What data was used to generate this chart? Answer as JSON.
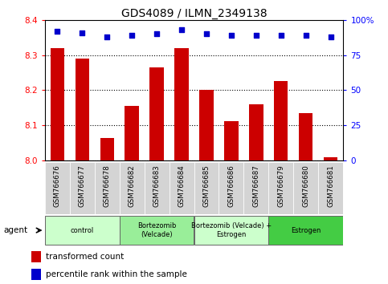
{
  "title": "GDS4089 / ILMN_2349138",
  "samples": [
    "GSM766676",
    "GSM766677",
    "GSM766678",
    "GSM766682",
    "GSM766683",
    "GSM766684",
    "GSM766685",
    "GSM766686",
    "GSM766687",
    "GSM766679",
    "GSM766680",
    "GSM766681"
  ],
  "bar_values": [
    8.32,
    8.29,
    8.065,
    8.155,
    8.265,
    8.32,
    8.2,
    8.113,
    8.16,
    8.225,
    8.135,
    8.01
  ],
  "percentile_values": [
    92,
    91,
    88,
    89,
    90,
    93,
    90,
    89,
    89,
    89,
    89,
    88
  ],
  "bar_color": "#cc0000",
  "dot_color": "#0000cc",
  "ylim_left": [
    8.0,
    8.4
  ],
  "ylim_right": [
    0,
    100
  ],
  "yticks_left": [
    8.0,
    8.1,
    8.2,
    8.3,
    8.4
  ],
  "yticks_right": [
    0,
    25,
    50,
    75,
    100
  ],
  "ytick_labels_right": [
    "0",
    "25",
    "50",
    "75",
    "100%"
  ],
  "groups": [
    {
      "label": "control",
      "start": 0,
      "end": 3,
      "color": "#ccffcc"
    },
    {
      "label": "Bortezomib\n(Velcade)",
      "start": 3,
      "end": 6,
      "color": "#99ee99"
    },
    {
      "label": "Bortezomib (Velcade) +\nEstrogen",
      "start": 6,
      "end": 9,
      "color": "#ccffcc"
    },
    {
      "label": "Estrogen",
      "start": 9,
      "end": 12,
      "color": "#44cc44"
    }
  ],
  "legend_bar_label": "transformed count",
  "legend_dot_label": "percentile rank within the sample",
  "agent_label": "agent",
  "plot_bg_color": "#ffffff",
  "gridline_color": "#000000",
  "bar_width": 0.55,
  "cell_bg_color": "#d4d4d4"
}
